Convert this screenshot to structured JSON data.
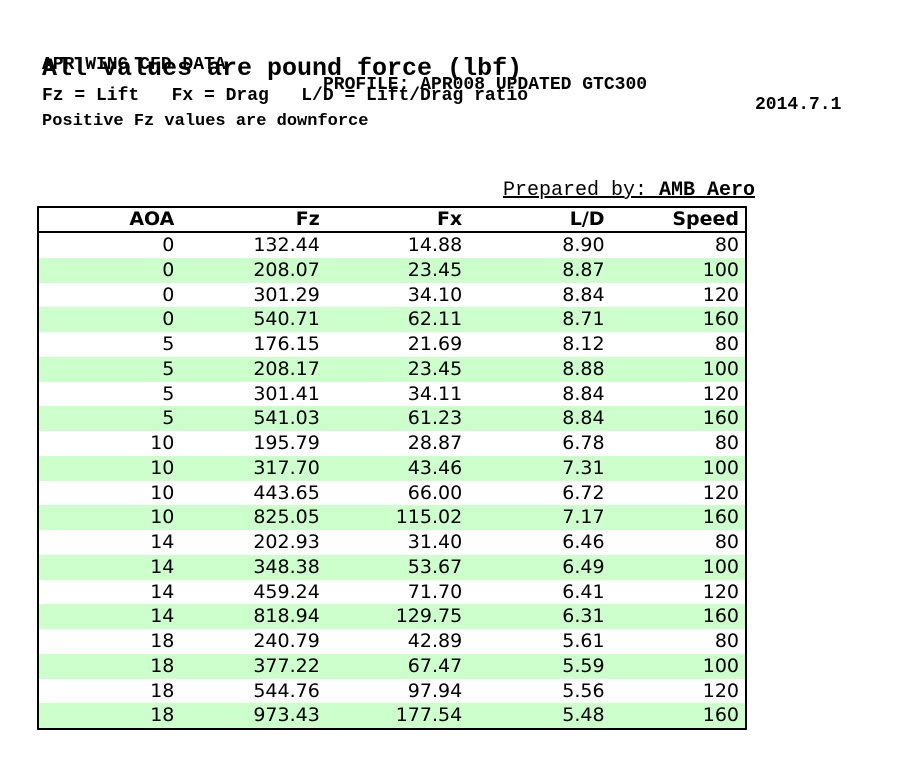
{
  "header": {
    "title": "APR WING CFD DATA",
    "profile": "PROFILE: APR008 UPDATED GTC300",
    "date": "2014.7.1",
    "subtitle": "All values are pound force (lbf)",
    "legend": "Fz = Lift   Fx = Drag   L/D = Lift/Drag ratio",
    "note": "Positive Fz values are downforce",
    "prepared_by_label": "Prepared by: ",
    "prepared_by_name": "AMB Aero"
  },
  "colors": {
    "stripe_green": "#ccffcc",
    "border_black": "#000000",
    "text_black": "#000000",
    "page_background": "#ffffff"
  },
  "table": {
    "columns": [
      "AOA",
      "Fz",
      "Fx",
      "L/D",
      "Speed"
    ],
    "rows": [
      [
        "0",
        "132.44",
        "14.88",
        "8.90",
        "80"
      ],
      [
        "0",
        "208.07",
        "23.45",
        "8.87",
        "100"
      ],
      [
        "0",
        "301.29",
        "34.10",
        "8.84",
        "120"
      ],
      [
        "0",
        "540.71",
        "62.11",
        "8.71",
        "160"
      ],
      [
        "5",
        "176.15",
        "21.69",
        "8.12",
        "80"
      ],
      [
        "5",
        "208.17",
        "23.45",
        "8.88",
        "100"
      ],
      [
        "5",
        "301.41",
        "34.11",
        "8.84",
        "120"
      ],
      [
        "5",
        "541.03",
        "61.23",
        "8.84",
        "160"
      ],
      [
        "10",
        "195.79",
        "28.87",
        "6.78",
        "80"
      ],
      [
        "10",
        "317.70",
        "43.46",
        "7.31",
        "100"
      ],
      [
        "10",
        "443.65",
        "66.00",
        "6.72",
        "120"
      ],
      [
        "10",
        "825.05",
        "115.02",
        "7.17",
        "160"
      ],
      [
        "14",
        "202.93",
        "31.40",
        "6.46",
        "80"
      ],
      [
        "14",
        "348.38",
        "53.67",
        "6.49",
        "100"
      ],
      [
        "14",
        "459.24",
        "71.70",
        "6.41",
        "120"
      ],
      [
        "14",
        "818.94",
        "129.75",
        "6.31",
        "160"
      ],
      [
        "18",
        "240.79",
        "42.89",
        "5.61",
        "80"
      ],
      [
        "18",
        "377.22",
        "67.47",
        "5.59",
        "100"
      ],
      [
        "18",
        "544.76",
        "97.94",
        "5.56",
        "120"
      ],
      [
        "18",
        "973.43",
        "177.54",
        "5.48",
        "160"
      ]
    ]
  }
}
